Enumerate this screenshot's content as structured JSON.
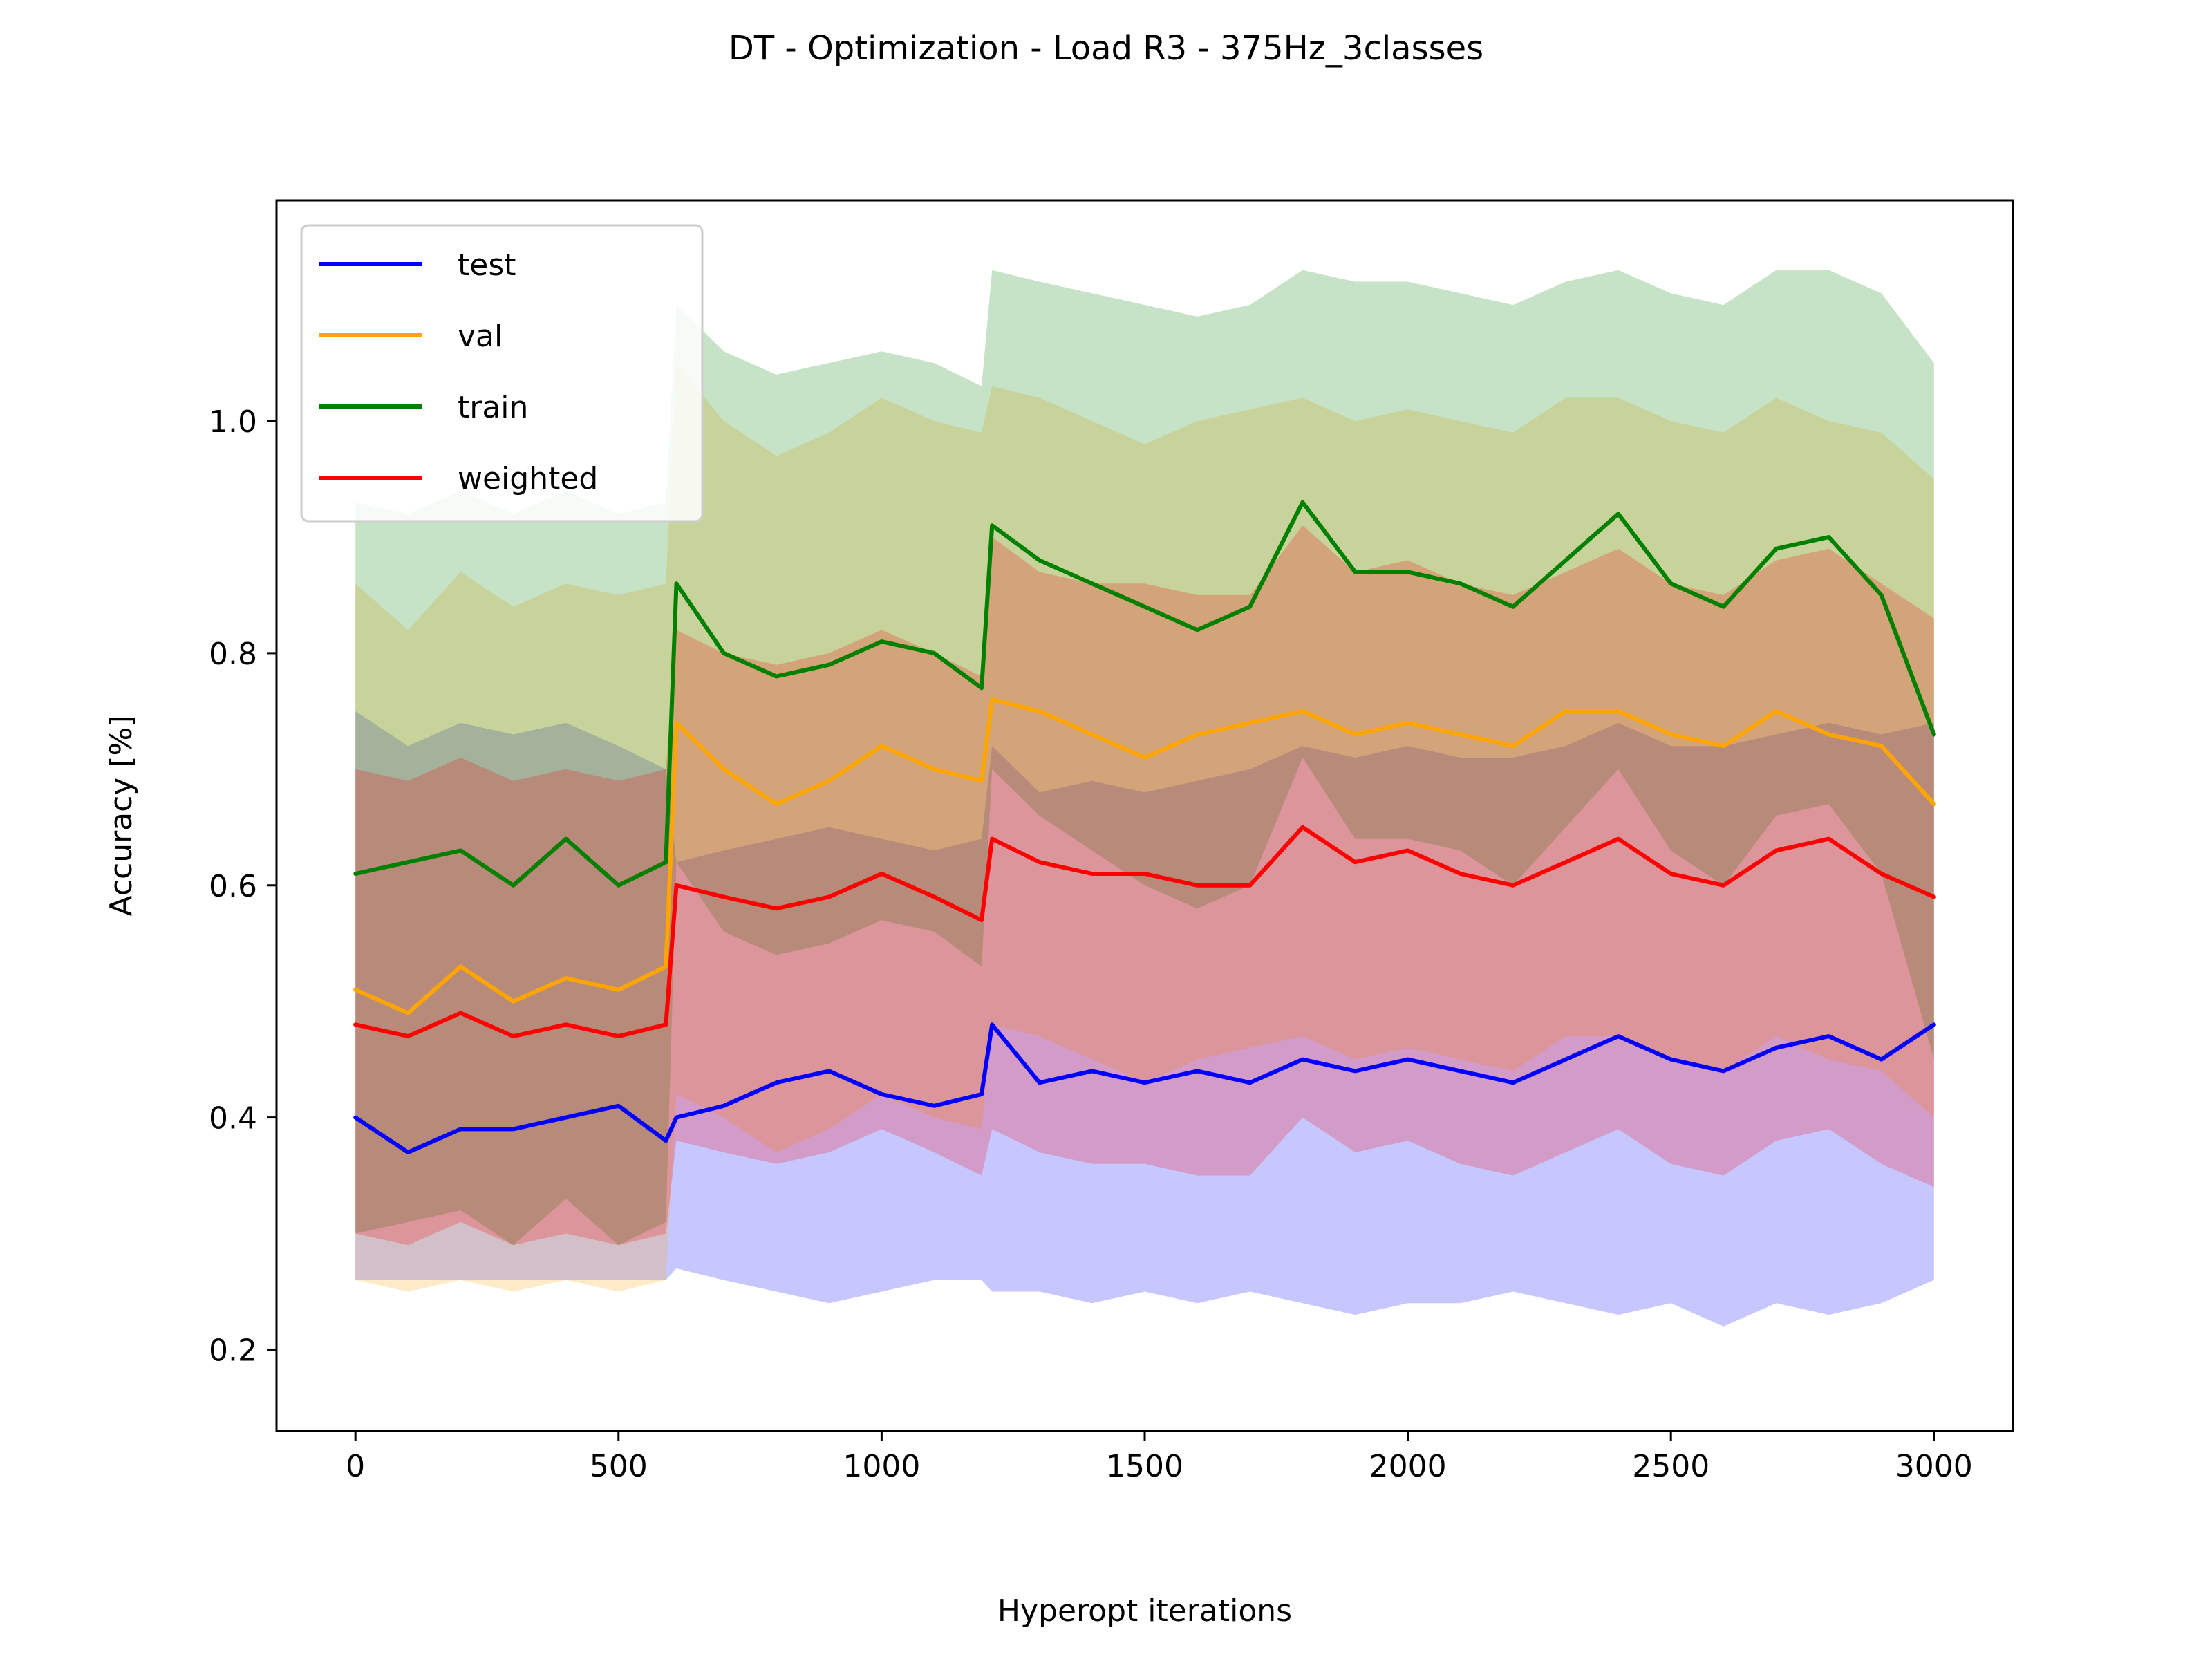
{
  "chart_data": {
    "type": "line",
    "title": "DT - Optimization - Load R3 - 375Hz_3classes",
    "xlabel": "Hyperopt iterations",
    "ylabel": "Accuracy [%]",
    "xlim": [
      -150,
      3150
    ],
    "ylim": [
      0.13,
      1.19
    ],
    "xticks": [
      0,
      500,
      1000,
      1500,
      2000,
      2500,
      3000
    ],
    "xtick_labels": [
      "0",
      "500",
      "1000",
      "1500",
      "2000",
      "2500",
      "3000"
    ],
    "yticks": [
      0.2,
      0.4,
      0.6,
      0.8,
      1.0
    ],
    "ytick_labels": [
      "0.2",
      "0.4",
      "0.6",
      "0.8",
      "1.0"
    ],
    "grid": false,
    "legend_position": "top-left",
    "x": [
      0,
      100,
      200,
      300,
      400,
      500,
      590,
      610,
      700,
      800,
      900,
      1000,
      1100,
      1190,
      1210,
      1300,
      1400,
      1500,
      1600,
      1700,
      1800,
      1900,
      2000,
      2100,
      2200,
      2300,
      2400,
      2500,
      2600,
      2700,
      2800,
      2900,
      3000
    ],
    "series": [
      {
        "name": "test",
        "color": "#0000ff",
        "values": [
          0.4,
          0.37,
          0.39,
          0.39,
          0.4,
          0.41,
          0.38,
          0.4,
          0.41,
          0.43,
          0.44,
          0.42,
          0.41,
          0.42,
          0.48,
          0.43,
          0.44,
          0.43,
          0.44,
          0.43,
          0.45,
          0.44,
          0.45,
          0.44,
          0.43,
          0.45,
          0.47,
          0.45,
          0.44,
          0.46,
          0.47,
          0.45,
          0.48
        ],
        "band_upper": [
          0.75,
          0.72,
          0.74,
          0.73,
          0.74,
          0.72,
          0.7,
          0.62,
          0.63,
          0.64,
          0.65,
          0.64,
          0.63,
          0.64,
          0.72,
          0.68,
          0.69,
          0.68,
          0.69,
          0.7,
          0.72,
          0.71,
          0.72,
          0.71,
          0.71,
          0.72,
          0.74,
          0.72,
          0.72,
          0.73,
          0.74,
          0.73,
          0.74
        ],
        "band_lower": [
          0.26,
          0.26,
          0.26,
          0.26,
          0.26,
          0.26,
          0.26,
          0.27,
          0.26,
          0.25,
          0.24,
          0.25,
          0.26,
          0.26,
          0.25,
          0.25,
          0.24,
          0.25,
          0.24,
          0.25,
          0.24,
          0.23,
          0.24,
          0.24,
          0.25,
          0.24,
          0.23,
          0.24,
          0.22,
          0.24,
          0.23,
          0.24,
          0.26
        ]
      },
      {
        "name": "val",
        "color": "#ffa500",
        "values": [
          0.51,
          0.49,
          0.53,
          0.5,
          0.52,
          0.51,
          0.53,
          0.74,
          0.7,
          0.67,
          0.69,
          0.72,
          0.7,
          0.69,
          0.76,
          0.75,
          0.73,
          0.71,
          0.73,
          0.74,
          0.75,
          0.73,
          0.74,
          0.73,
          0.72,
          0.75,
          0.75,
          0.73,
          0.72,
          0.75,
          0.73,
          0.72,
          0.67
        ],
        "band_upper": [
          0.86,
          0.82,
          0.87,
          0.84,
          0.86,
          0.85,
          0.86,
          1.05,
          1.0,
          0.97,
          0.99,
          1.02,
          1.0,
          0.99,
          1.03,
          1.02,
          1.0,
          0.98,
          1.0,
          1.01,
          1.02,
          1.0,
          1.01,
          1.0,
          0.99,
          1.02,
          1.02,
          1.0,
          0.99,
          1.02,
          1.0,
          0.99,
          0.95
        ],
        "band_lower": [
          0.26,
          0.25,
          0.26,
          0.25,
          0.26,
          0.25,
          0.26,
          0.42,
          0.4,
          0.37,
          0.39,
          0.42,
          0.4,
          0.39,
          0.48,
          0.47,
          0.45,
          0.43,
          0.45,
          0.46,
          0.47,
          0.45,
          0.46,
          0.45,
          0.44,
          0.47,
          0.47,
          0.45,
          0.44,
          0.47,
          0.45,
          0.44,
          0.4
        ]
      },
      {
        "name": "train",
        "color": "#008000",
        "values": [
          0.61,
          0.62,
          0.63,
          0.6,
          0.64,
          0.6,
          0.62,
          0.86,
          0.8,
          0.78,
          0.79,
          0.81,
          0.8,
          0.77,
          0.91,
          0.88,
          0.86,
          0.84,
          0.82,
          0.84,
          0.93,
          0.87,
          0.87,
          0.86,
          0.84,
          0.88,
          0.92,
          0.86,
          0.84,
          0.89,
          0.9,
          0.85,
          0.73
        ],
        "band_upper": [
          0.93,
          0.92,
          0.94,
          0.92,
          0.94,
          0.92,
          0.93,
          1.1,
          1.06,
          1.04,
          1.05,
          1.06,
          1.05,
          1.03,
          1.13,
          1.12,
          1.11,
          1.1,
          1.09,
          1.1,
          1.13,
          1.12,
          1.12,
          1.11,
          1.1,
          1.12,
          1.13,
          1.11,
          1.1,
          1.13,
          1.13,
          1.11,
          1.05
        ],
        "band_lower": [
          0.3,
          0.31,
          0.32,
          0.29,
          0.33,
          0.29,
          0.31,
          0.62,
          0.56,
          0.54,
          0.55,
          0.57,
          0.56,
          0.53,
          0.7,
          0.66,
          0.63,
          0.6,
          0.58,
          0.6,
          0.71,
          0.64,
          0.64,
          0.63,
          0.6,
          0.65,
          0.7,
          0.63,
          0.6,
          0.66,
          0.67,
          0.61,
          0.45
        ]
      },
      {
        "name": "weighted",
        "color": "#ff0000",
        "values": [
          0.48,
          0.47,
          0.49,
          0.47,
          0.48,
          0.47,
          0.48,
          0.6,
          0.59,
          0.58,
          0.59,
          0.61,
          0.59,
          0.57,
          0.64,
          0.62,
          0.61,
          0.61,
          0.6,
          0.6,
          0.65,
          0.62,
          0.63,
          0.61,
          0.6,
          0.62,
          0.64,
          0.61,
          0.6,
          0.63,
          0.64,
          0.61,
          0.59
        ],
        "band_upper": [
          0.7,
          0.69,
          0.71,
          0.69,
          0.7,
          0.69,
          0.7,
          0.82,
          0.8,
          0.79,
          0.8,
          0.82,
          0.8,
          0.78,
          0.9,
          0.87,
          0.86,
          0.86,
          0.85,
          0.85,
          0.91,
          0.87,
          0.88,
          0.86,
          0.85,
          0.87,
          0.89,
          0.86,
          0.85,
          0.88,
          0.89,
          0.86,
          0.83
        ],
        "band_lower": [
          0.3,
          0.29,
          0.31,
          0.29,
          0.3,
          0.29,
          0.3,
          0.38,
          0.37,
          0.36,
          0.37,
          0.39,
          0.37,
          0.35,
          0.39,
          0.37,
          0.36,
          0.36,
          0.35,
          0.35,
          0.4,
          0.37,
          0.38,
          0.36,
          0.35,
          0.37,
          0.39,
          0.36,
          0.35,
          0.38,
          0.39,
          0.36,
          0.34
        ]
      }
    ]
  }
}
